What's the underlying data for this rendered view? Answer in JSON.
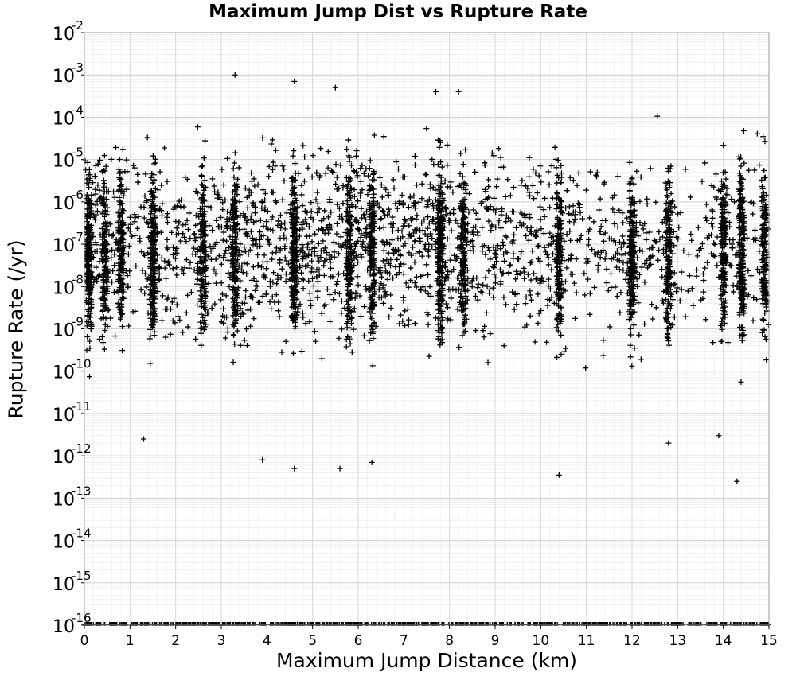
{
  "chart_data": {
    "type": "scatter",
    "title": "Maximum Jump Dist vs Rupture Rate",
    "xlabel": "Maximum Jump Distance (km)",
    "ylabel": "Rupture Rate (/yr)",
    "xlim": [
      0,
      15
    ],
    "ylim_exponent": [
      -16,
      -2
    ],
    "yscale": "log",
    "grid": true,
    "marker": "+",
    "x_ticks": [
      "0",
      "1",
      "2",
      "3",
      "4",
      "5",
      "6",
      "7",
      "8",
      "9",
      "10",
      "11",
      "12",
      "13",
      "14",
      "15"
    ],
    "y_tick_exponents": [
      -16,
      -15,
      -14,
      -13,
      -12,
      -11,
      -10,
      -9,
      -8,
      -7,
      -6,
      -5,
      -4,
      -3,
      -2
    ],
    "dense_columns_km": [
      0.1,
      0.45,
      0.8,
      1.5,
      2.6,
      3.3,
      4.6,
      5.8,
      6.3,
      7.8,
      8.3,
      10.4,
      12.0,
      12.8,
      14.0,
      14.4,
      14.9
    ],
    "outliers": [
      {
        "x": 3.3,
        "y": 0.001
      },
      {
        "x": 4.6,
        "y": 0.0007
      },
      {
        "x": 5.5,
        "y": 0.0005
      },
      {
        "x": 7.7,
        "y": 0.0004
      },
      {
        "x": 8.2,
        "y": 0.0004
      },
      {
        "x": 3.9,
        "y": 8e-13
      },
      {
        "x": 4.6,
        "y": 5e-13
      },
      {
        "x": 5.6,
        "y": 5e-13
      },
      {
        "x": 6.3,
        "y": 7e-13
      },
      {
        "x": 10.4,
        "y": 3.5e-13
      },
      {
        "x": 14.3,
        "y": 2.5e-13
      },
      {
        "x": 1.3,
        "y": 2.5e-12
      },
      {
        "x": 12.8,
        "y": 2e-12
      },
      {
        "x": 13.9,
        "y": 3e-12
      }
    ],
    "zero_rate_floor_value": 1e-16
  }
}
